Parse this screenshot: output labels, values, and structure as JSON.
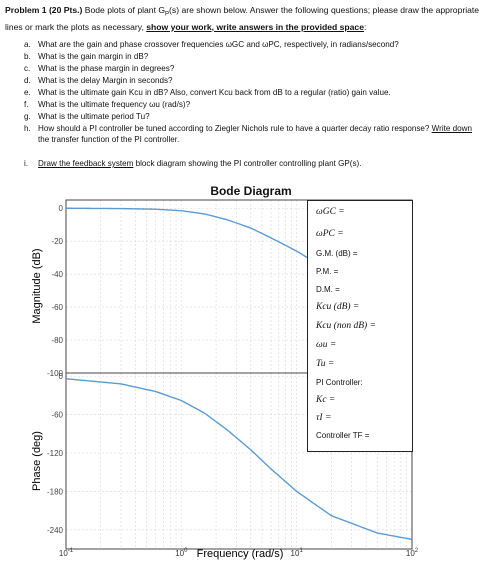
{
  "header": {
    "problem_label": "Problem 1 (20 Pts.)",
    "intro_text": " Bode plots of plant G",
    "intro_sub": "P",
    "intro_rest": "(s) are shown below. Answer the following questions; please draw the appropriate lines or mark the plots as necessary, ",
    "emphasis": "show your work, write answers in the provided space",
    "end": ":"
  },
  "questions": [
    {
      "letter": "a.",
      "text": "What are the gain and phase crossover frequencies ωGC and ωPC, respectively, in radians/second?"
    },
    {
      "letter": "b.",
      "text": "What is the gain margin in dB?"
    },
    {
      "letter": "c.",
      "text": "What is the phase margin in degrees?"
    },
    {
      "letter": "d.",
      "text": "What is the delay Margin in seconds?"
    },
    {
      "letter": "e.",
      "text": "What is the ultimate gain Kcu in dB? Also, convert Kcu back from dB to a regular (ratio) gain value."
    },
    {
      "letter": "f.",
      "text": "What is the ultimate frequency ωu (rad/s)?"
    },
    {
      "letter": "g.",
      "text": "What is the ultimate period Tu?"
    },
    {
      "letter": "h.",
      "text": "How should a PI controller be tuned according to Ziegler Nichols rule to have a quarter decay ratio response? ",
      "underlined": "Write down",
      "text_after": " the transfer function of the PI controller."
    },
    {
      "letter": "i.",
      "underlined": "Draw the feedback system",
      "text_after": " block diagram showing the PI controller controlling plant GP(s)."
    }
  ],
  "figure": {
    "title": "Bode Diagram",
    "magnitude_ylabel": "Magnitude (dB)",
    "phase_ylabel": "Phase (deg)",
    "xlabel": "Frequency  (rad/s)",
    "mag_ticks": [
      "0",
      "-20",
      "-40",
      "-60",
      "-80",
      "-100"
    ],
    "phase_ticks": [
      "0",
      "-60",
      "-120",
      "-180",
      "-240"
    ],
    "freq_ticks": [
      {
        "base": "10",
        "exp": "-1"
      },
      {
        "base": "10",
        "exp": "0"
      },
      {
        "base": "10",
        "exp": "1"
      },
      {
        "base": "10",
        "exp": "2"
      }
    ],
    "colors": {
      "curve": "#5b9bd5",
      "grid": "#d8d8d8",
      "axis": "#555555"
    }
  },
  "answer_box": {
    "wgc": "ωGC =",
    "wpc": "ωPC =",
    "gm": "G.M. (dB) =",
    "pm": "P.M. =",
    "dm": "D.M. =",
    "kcu_db": "Kcu (dB) =",
    "kcu_ratio": "Kcu (non dB) =",
    "wu": "ωu =",
    "tu": "Tu =",
    "pi_label": "PI Controller:",
    "kc": "Kc =",
    "ti": "τI =",
    "tf": "Controller TF ="
  },
  "chart_data": [
    {
      "type": "line",
      "title": "Bode Diagram",
      "xlabel": "Frequency  (rad/s)",
      "ylabel": "Magnitude (dB)",
      "xscale": "log",
      "xlim": [
        0.1,
        100
      ],
      "ylim": [
        -100,
        5
      ],
      "grid": true,
      "series": [
        {
          "x": [
            0.1,
            0.3,
            0.6,
            1,
            1.6,
            2.5,
            4,
            6,
            10,
            20,
            50,
            100
          ],
          "y": [
            0,
            -0.2,
            -0.6,
            -1.5,
            -3.5,
            -7,
            -12,
            -18,
            -26,
            -39,
            -57,
            -70
          ]
        }
      ]
    },
    {
      "type": "line",
      "xlabel": "Frequency  (rad/s)",
      "ylabel": "Phase (deg)",
      "xscale": "log",
      "xlim": [
        0.1,
        100
      ],
      "ylim": [
        -270,
        5
      ],
      "grid": true,
      "series": [
        {
          "x": [
            0.1,
            0.3,
            0.6,
            1,
            1.6,
            2.5,
            4,
            6,
            10,
            20,
            50,
            100
          ],
          "y": [
            -4,
            -12,
            -24,
            -38,
            -58,
            -84,
            -115,
            -145,
            -180,
            -218,
            -245,
            -255
          ]
        }
      ]
    }
  ]
}
